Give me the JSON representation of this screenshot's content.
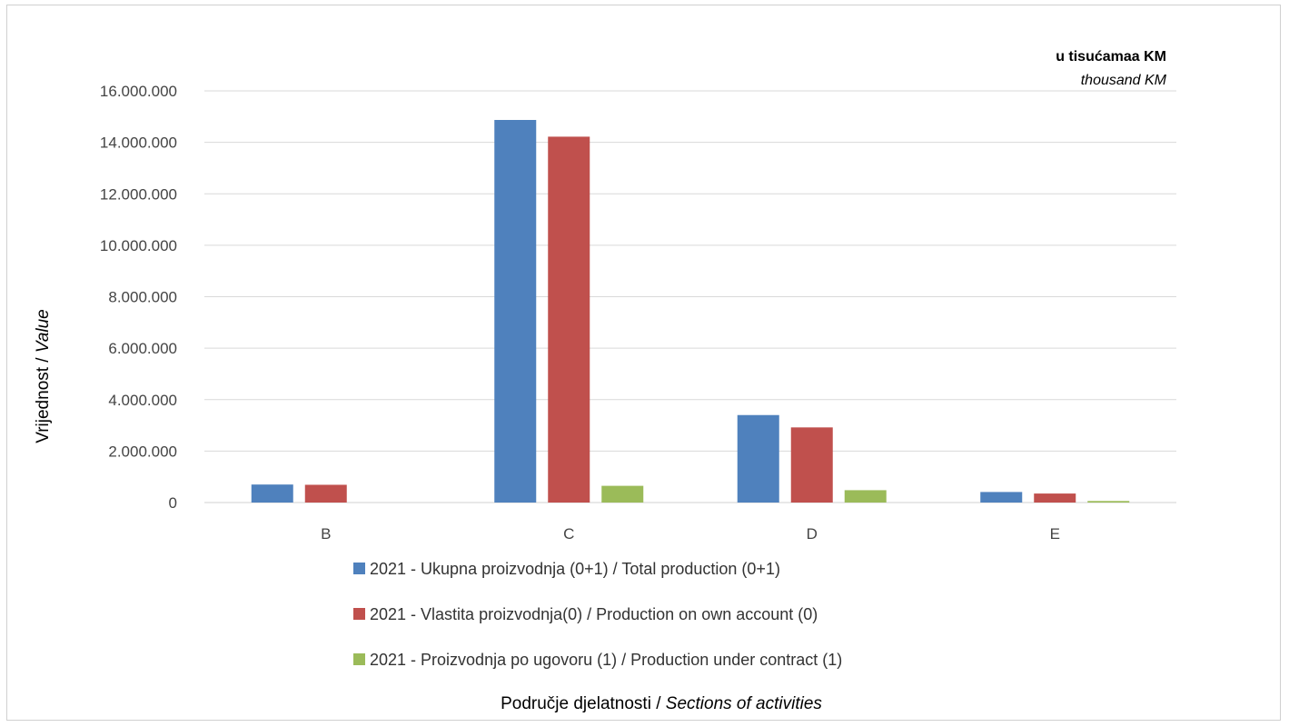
{
  "units": {
    "main": "u tisućamaa KM",
    "sub": "thousand KM"
  },
  "chart_data": {
    "type": "bar",
    "categories": [
      "B",
      "C",
      "D",
      "E"
    ],
    "series": [
      {
        "name": "2021 - Ukupna proizvodnja (0+1) / Total production (0+1)",
        "color": "#4f81bd",
        "values": [
          700000,
          14870000,
          3400000,
          410000
        ]
      },
      {
        "name": "2021 - Vlastita proizvodnja(0) / Production on own account (0)",
        "color": "#c0504d",
        "values": [
          690000,
          14220000,
          2920000,
          350000
        ]
      },
      {
        "name": "2021 - Proizvodnja po ugovoru (1) / Production under contract (1)",
        "color": "#9bbb59",
        "values": [
          0,
          650000,
          480000,
          60000
        ]
      }
    ],
    "ylim": [
      0,
      16000000
    ],
    "yticks": [
      0,
      2000000,
      4000000,
      6000000,
      8000000,
      10000000,
      12000000,
      14000000,
      16000000
    ],
    "ytick_labels": [
      "0",
      "2.000.000",
      "4.000.000",
      "6.000.000",
      "8.000.000",
      "10.000.000",
      "12.000.000",
      "14.000.000",
      "16.000.000"
    ],
    "ylabel": {
      "main": "Vrijednost  / ",
      "italic": "Value"
    },
    "xlabel": {
      "main": "Područje djelatnosti / ",
      "italic": "Sections of activities"
    },
    "grid": true,
    "legend_position": "bottom"
  }
}
